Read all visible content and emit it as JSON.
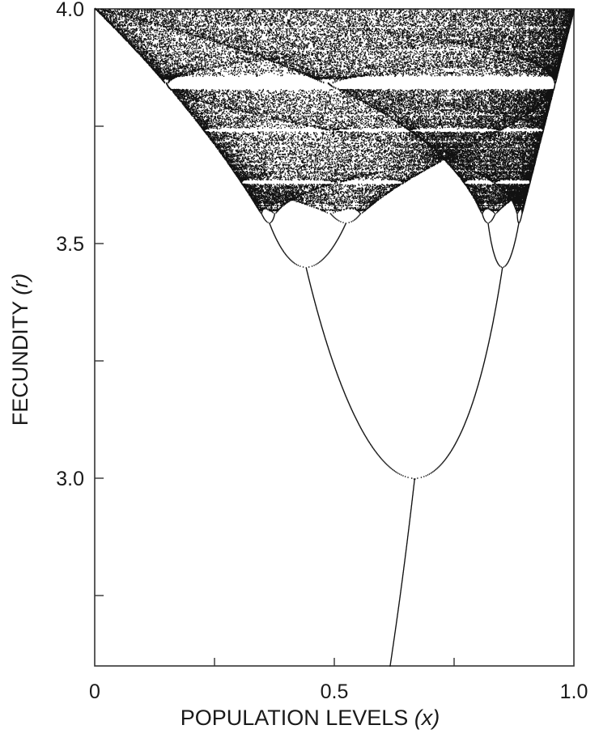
{
  "chart_data": {
    "type": "scatter",
    "title": "",
    "xlabel": "POPULATION LEVELS",
    "xlabel_var": "(x)",
    "ylabel": "FECUNDITY",
    "ylabel_var": "(r)",
    "xlim": [
      0,
      1.0
    ],
    "ylim": [
      2.6,
      4.0
    ],
    "x_ticks": [
      0,
      0.25,
      0.5,
      0.75,
      1.0
    ],
    "x_tick_labels": [
      "0",
      "",
      "0.5",
      "",
      "1.0"
    ],
    "y_ticks": [
      2.75,
      3.0,
      3.25,
      3.5,
      3.75,
      4.0
    ],
    "y_tick_labels": [
      "",
      "3.0",
      "",
      "3.5",
      "",
      "4.0"
    ],
    "grid": false,
    "series": [
      {
        "kind": "bifurcation",
        "map": "x_next = r * x * (1 - x)",
        "r_range": [
          2.6,
          4.0
        ],
        "color": "#111111"
      }
    ],
    "key_points": {
      "first_bifurcation": {
        "r": 3.0,
        "x": 0.667
      },
      "second_bifurcation": {
        "r": 3.449,
        "x": [
          0.44,
          0.85
        ]
      },
      "period3_window_r": 3.83
    }
  }
}
